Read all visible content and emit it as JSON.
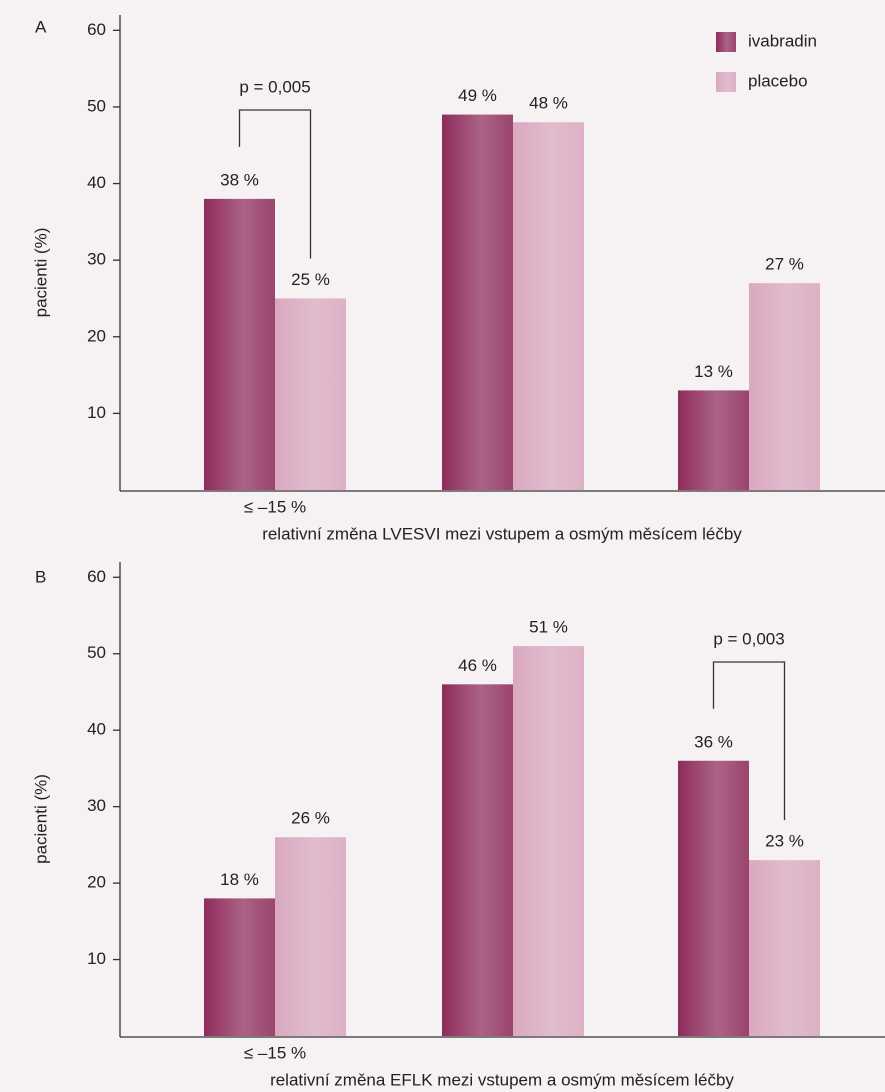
{
  "chart_data": [
    {
      "type": "bar",
      "panel": "A",
      "ylabel": "pacienti (%)",
      "xlabel": "relativní změna LVESVI mezi vstupem a osmým měsícem léčby",
      "categories": [
        "≤ –15 %",
        null,
        null
      ],
      "series": [
        {
          "name": "ivabradin",
          "color": "#8e2c5c",
          "values": [
            38,
            49,
            13
          ],
          "value_labels": [
            "38 %",
            "49 %",
            "13 %"
          ]
        },
        {
          "name": "placebo",
          "color": "#d9a8bf",
          "values": [
            25,
            48,
            27
          ],
          "value_labels": [
            "25 %",
            "48 %",
            "27 %"
          ]
        }
      ],
      "annotation": "p = 0,005",
      "ylim": [
        0,
        62
      ],
      "yticks": [
        10,
        20,
        30,
        40,
        50,
        60
      ],
      "legend": "top-right"
    },
    {
      "type": "bar",
      "panel": "B",
      "ylabel": "pacienti (%)",
      "xlabel": "relativní změna EFLK mezi vstupem a osmým měsícem léčby",
      "categories": [
        "≤ –15 %",
        null,
        null
      ],
      "series": [
        {
          "color": "#8e2c5c",
          "values": [
            18,
            46,
            36
          ],
          "value_labels": [
            "18 %",
            "46 %",
            "36 %"
          ]
        },
        {
          "color": "#d9a8bf",
          "values": [
            26,
            51,
            23
          ],
          "value_labels": [
            "26 %",
            "51 %",
            "23 %"
          ]
        }
      ],
      "annotation": "p = 0,003",
      "ylim": [
        0,
        62
      ],
      "yticks": [
        10,
        20,
        30,
        40,
        50,
        60
      ]
    }
  ]
}
